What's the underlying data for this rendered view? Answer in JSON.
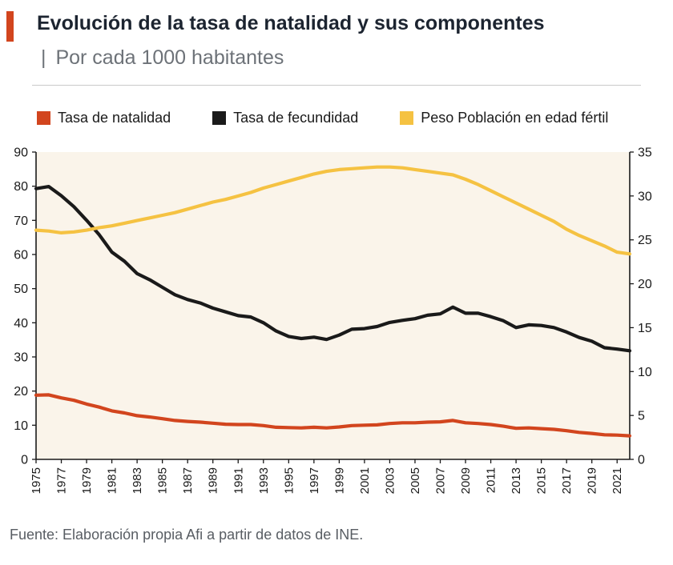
{
  "header": {
    "title": "Evolución de la tasa de natalidad y sus componentes",
    "separator": "|",
    "subtitle": "Por cada 1000 habitantes",
    "accent_color": "#d2451e"
  },
  "legend": [
    {
      "label": "Tasa de natalidad",
      "color": "#d2451e"
    },
    {
      "label": "Tasa de fecundidad",
      "color": "#1a1a1a"
    },
    {
      "label": "Peso Población en edad fértil",
      "color": "#f5c242"
    }
  ],
  "footer": {
    "source": "Fuente: Elaboración propia Afi a partir de datos de INE."
  },
  "chart_data": {
    "type": "line",
    "title": "Evolución de la tasa de natalidad y sus componentes | Por cada 1000 habitantes",
    "xlabel": "",
    "ylabel_left": "",
    "ylabel_right": "",
    "grid": false,
    "legend_position": "top",
    "plot_background": "#faf4ea",
    "axis_color": "#1a1a1a",
    "ylim_left": [
      0,
      90
    ],
    "ylim_right": [
      0,
      35
    ],
    "left_ticks": [
      0,
      10,
      20,
      30,
      40,
      50,
      60,
      70,
      80,
      90
    ],
    "right_ticks": [
      0,
      5,
      10,
      15,
      20,
      25,
      30,
      35
    ],
    "x_tick_labels": [
      "1975",
      "1977",
      "1979",
      "1981",
      "1983",
      "1985",
      "1987",
      "1989",
      "1991",
      "1993",
      "1995",
      "1997",
      "1999",
      "2001",
      "2003",
      "2005",
      "2007",
      "2009",
      "2011",
      "2013",
      "2015",
      "2017",
      "2019",
      "2021"
    ],
    "x": [
      1975,
      1976,
      1977,
      1978,
      1979,
      1980,
      1981,
      1982,
      1983,
      1984,
      1985,
      1986,
      1987,
      1988,
      1989,
      1990,
      1991,
      1992,
      1993,
      1994,
      1995,
      1996,
      1997,
      1998,
      1999,
      2000,
      2001,
      2002,
      2003,
      2004,
      2005,
      2006,
      2007,
      2008,
      2009,
      2010,
      2011,
      2012,
      2013,
      2014,
      2015,
      2016,
      2017,
      2018,
      2019,
      2020,
      2021,
      2022
    ],
    "series": [
      {
        "name": "Tasa de natalidad",
        "axis": "left",
        "color": "#d2451e",
        "values": [
          18.8,
          18.9,
          18.0,
          17.3,
          16.2,
          15.3,
          14.2,
          13.6,
          12.8,
          12.4,
          11.9,
          11.4,
          11.1,
          10.9,
          10.6,
          10.3,
          10.2,
          10.2,
          9.9,
          9.4,
          9.3,
          9.2,
          9.4,
          9.2,
          9.5,
          9.9,
          10.0,
          10.1,
          10.5,
          10.7,
          10.7,
          10.9,
          11.0,
          11.4,
          10.7,
          10.5,
          10.2,
          9.7,
          9.1,
          9.2,
          9.0,
          8.8,
          8.4,
          7.9,
          7.6,
          7.2,
          7.1,
          6.9
        ]
      },
      {
        "name": "Tasa de fecundidad",
        "axis": "left",
        "color": "#1a1a1a",
        "values": [
          79.3,
          79.9,
          77.2,
          74.0,
          70.0,
          65.8,
          60.7,
          58.0,
          54.4,
          52.6,
          50.4,
          48.2,
          46.8,
          45.8,
          44.3,
          43.2,
          42.1,
          41.7,
          40.0,
          37.6,
          36.0,
          35.4,
          35.8,
          35.1,
          36.4,
          38.1,
          38.3,
          38.9,
          40.1,
          40.7,
          41.2,
          42.2,
          42.6,
          44.6,
          42.8,
          42.8,
          41.8,
          40.6,
          38.6,
          39.4,
          39.2,
          38.6,
          37.3,
          35.7,
          34.6,
          32.7,
          32.3,
          31.8
        ]
      },
      {
        "name": "Peso Población en edad fértil",
        "axis": "right",
        "color": "#f5c242",
        "values": [
          26.1,
          26.0,
          25.8,
          25.9,
          26.1,
          26.4,
          26.6,
          26.9,
          27.2,
          27.5,
          27.8,
          28.1,
          28.5,
          28.9,
          29.3,
          29.6,
          30.0,
          30.4,
          30.9,
          31.3,
          31.7,
          32.1,
          32.5,
          32.8,
          33.0,
          33.1,
          33.2,
          33.3,
          33.3,
          33.2,
          33.0,
          32.8,
          32.6,
          32.4,
          31.9,
          31.3,
          30.6,
          29.9,
          29.2,
          28.5,
          27.8,
          27.1,
          26.2,
          25.5,
          24.9,
          24.3,
          23.6,
          23.4
        ]
      }
    ]
  }
}
